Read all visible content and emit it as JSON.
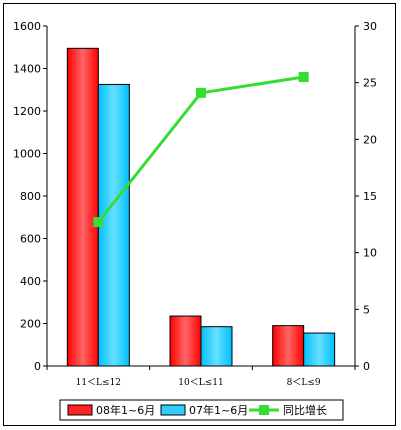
{
  "chart_data": {
    "type": "bar",
    "title": "",
    "xlabel": "",
    "ylabel": "",
    "categories": [
      "11＜L≤12",
      "10＜L≤11",
      "8＜L≤9"
    ],
    "series": [
      {
        "name": "08年1~6月",
        "kind": "bar",
        "axis": "left",
        "color": "#ff3333",
        "values": [
          1495,
          235,
          190
        ]
      },
      {
        "name": "07年1~6月",
        "kind": "bar",
        "axis": "left",
        "color": "#33ccff",
        "values": [
          1325,
          185,
          155
        ]
      },
      {
        "name": "同比增长",
        "kind": "line",
        "axis": "right",
        "color": "#33dd33",
        "values": [
          12.7,
          24.1,
          25.5
        ]
      }
    ],
    "ylim": [
      0,
      1600
    ],
    "y_ticks": [
      0,
      200,
      400,
      600,
      800,
      1000,
      1200,
      1400,
      1600
    ],
    "y2lim": [
      0,
      30
    ],
    "y2_ticks": [
      0,
      5,
      10,
      15,
      20,
      25,
      30
    ],
    "grid": false,
    "legend_position": "bottom"
  }
}
